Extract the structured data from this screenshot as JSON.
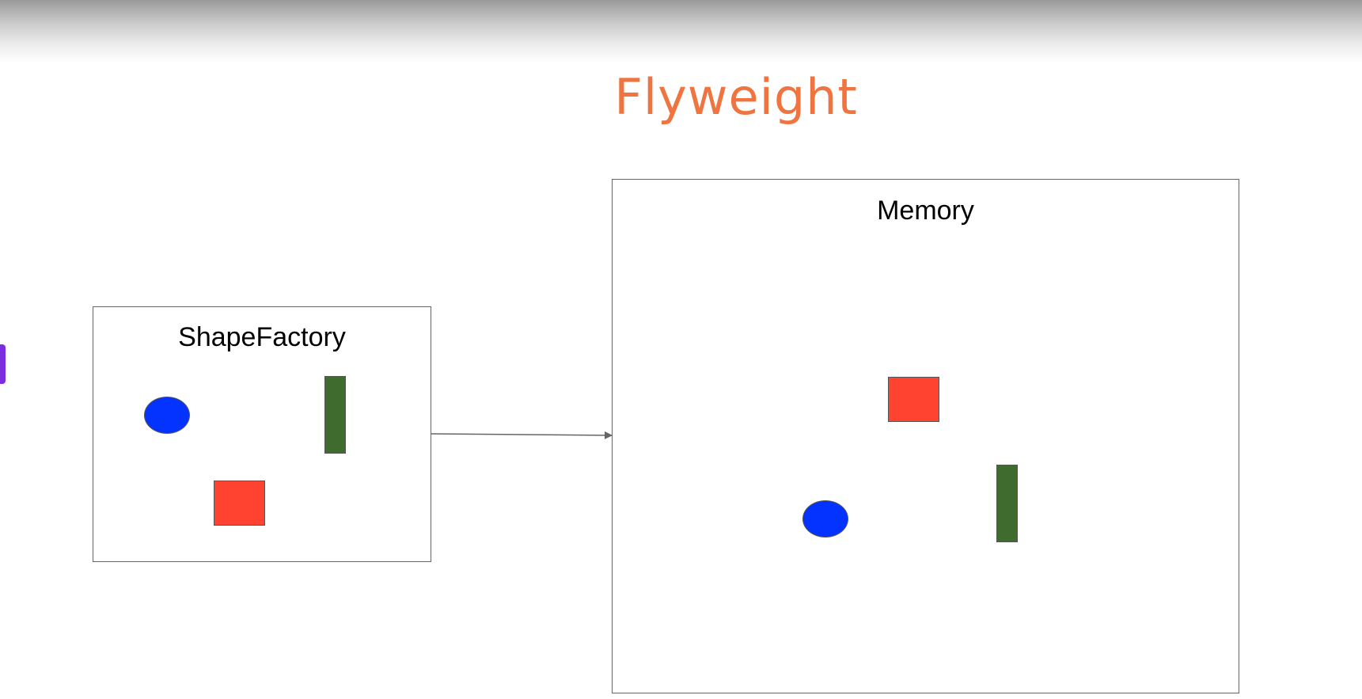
{
  "slide": {
    "title": "Flyweight"
  },
  "colors": {
    "title": "#ef7440",
    "circle": "#0433ff",
    "bar": "#3f6b2e",
    "square": "#ff4330",
    "accent_tab": "#7a2ee0",
    "arrow": "#666666"
  },
  "diagram": {
    "factory": {
      "label": "ShapeFactory",
      "shapes": [
        "circle",
        "bar",
        "square"
      ]
    },
    "memory": {
      "label": "Memory",
      "shapes": [
        "square",
        "circle",
        "bar"
      ]
    },
    "arrow": {
      "from": "factory",
      "to": "memory"
    }
  }
}
